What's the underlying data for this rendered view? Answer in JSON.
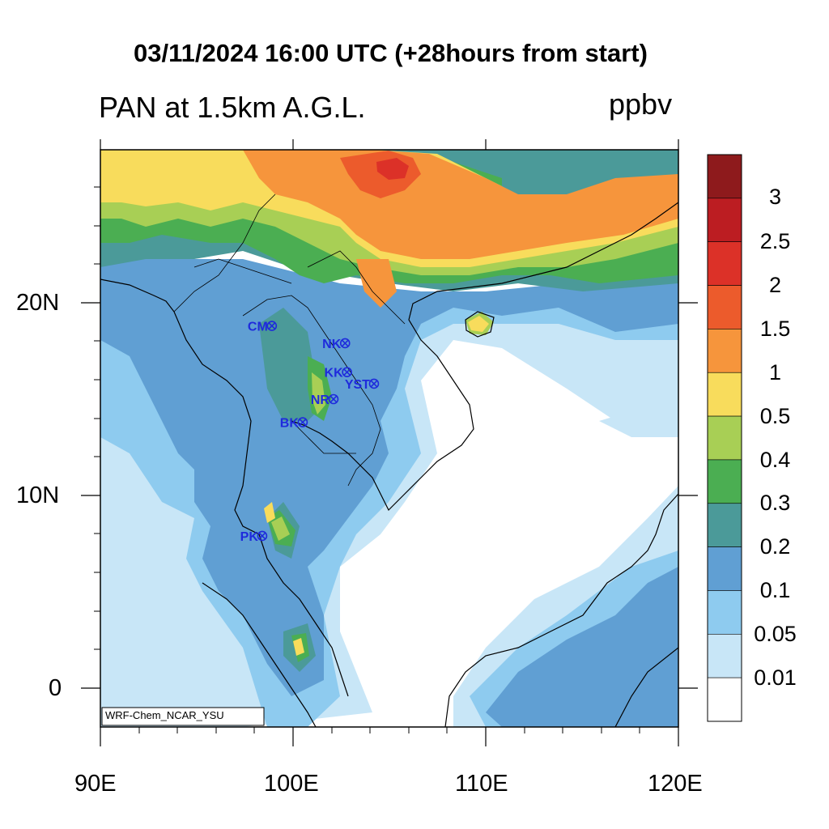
{
  "title": "03/11/2024 16:00 UTC (+28hours from start)",
  "subtitle_left": "PAN at 1.5km A.G.L.",
  "subtitle_right": "ppbv",
  "model_label": "WRF-Chem_NCAR_YSU",
  "x_ticks": [
    "90E",
    "100E",
    "110E",
    "120E"
  ],
  "y_ticks": [
    "20N",
    "10N",
    "0"
  ],
  "colorbar": {
    "levels": [
      "3",
      "2.5",
      "2",
      "1.5",
      "1",
      "0.5",
      "0.4",
      "0.3",
      "0.2",
      "0.1",
      "0.05",
      "0.01"
    ],
    "colors": [
      "#8e1a1c",
      "#bc1d22",
      "#dc3128",
      "#ec5b2c",
      "#f6953c",
      "#f8dc5c",
      "#a8cf55",
      "#4bae52",
      "#4b9a99",
      "#609fd3",
      "#8ecbef",
      "#c8e6f7",
      "#ffffff"
    ]
  },
  "stations": [
    {
      "name": "CM",
      "lon": 98.9,
      "lat": 18.8
    },
    {
      "name": "NK",
      "lon": 102.7,
      "lat": 17.9
    },
    {
      "name": "KK",
      "lon": 102.8,
      "lat": 16.4
    },
    {
      "name": "YST",
      "lon": 104.2,
      "lat": 15.8
    },
    {
      "name": "NR",
      "lon": 102.1,
      "lat": 15.0
    },
    {
      "name": "BK",
      "lon": 100.5,
      "lat": 13.8
    },
    {
      "name": "PK",
      "lon": 98.4,
      "lat": 7.9
    }
  ]
}
